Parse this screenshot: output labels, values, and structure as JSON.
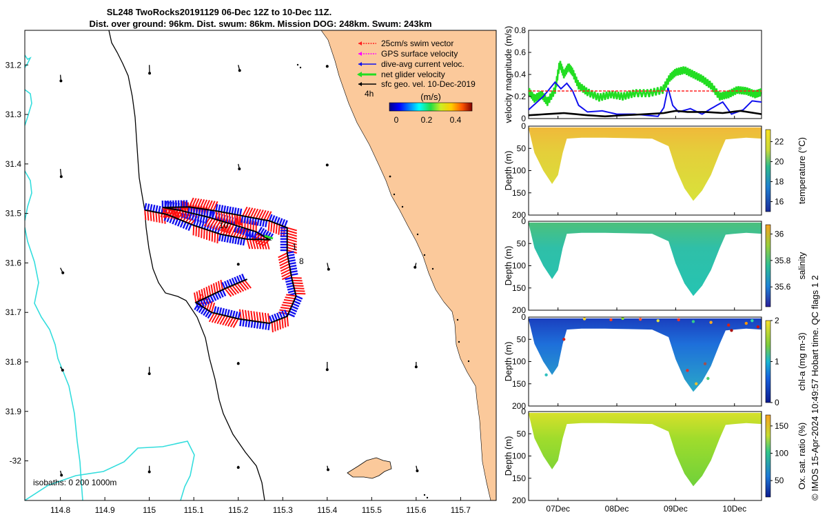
{
  "title": {
    "line1": "SL248 TwoRocks20191129 06-Dec 12Z to 10-Dec 11Z.",
    "line2": "Dist. over ground: 96km. Dist. swum: 86km. Mission DOG: 248km. Swum: 243km"
  },
  "colors": {
    "land": "#FBC99B",
    "isobath": "#33DDDD",
    "track_blue": "#1010EE",
    "track_red": "#FF0000",
    "net_green": "#22DD22",
    "swim_red": "#FF2020",
    "gps_magenta": "#FF00FF",
    "geo_black": "#000000"
  },
  "chart_data": [
    {
      "type": "map",
      "name": "glider_track_map",
      "xlim": [
        114.72,
        115.78
      ],
      "ylim": [
        -32.08,
        -31.13
      ],
      "x_ticks": [
        114.8,
        114.9,
        115,
        115.1,
        115.2,
        115.3,
        115.4,
        115.5,
        115.6,
        115.7
      ],
      "x_tick_labels": [
        "114.8",
        "114.9",
        "115",
        "115.1",
        "115.2",
        "115.3",
        "115.4",
        "115.5",
        "115.6",
        "115.7"
      ],
      "y_ticks": [
        -31.2,
        -31.3,
        -31.4,
        -31.5,
        -31.6,
        -31.7,
        -31.8,
        -31.9,
        -32.0
      ],
      "y_tick_labels": [
        "31.2",
        "31.3",
        "31.4",
        "31.5",
        "31.6",
        "31.7",
        "31.8",
        "31.9",
        "-32"
      ],
      "legend": {
        "position": "top-right",
        "items": [
          {
            "label": "25cm/s swim vector",
            "color": "#FF2020",
            "style": "dotted"
          },
          {
            "label": "GPS surface velocity",
            "color": "#FF00FF",
            "style": "dotted"
          },
          {
            "label": "dive-avg current veloc.",
            "color": "#1010EE",
            "style": "solid"
          },
          {
            "label": "net glider velocity",
            "color": "#22DD22",
            "style": "thick"
          },
          {
            "label": "sfc geo. vel. 10-Dec-2019",
            "color": "#000000",
            "style": "solid"
          }
        ],
        "time_marker_label": "4h",
        "colorbar_unit": "(m/s)",
        "colorbar_ticks": [
          "0",
          "0.2",
          "0.4"
        ],
        "colorbar_range": [
          0,
          0.5
        ]
      },
      "day_labels": [
        "10",
        "1",
        "8"
      ],
      "isobaths_label": "isobaths: 0   200  1000m",
      "track": [
        [
          114.99,
          -31.493
        ],
        [
          115.04,
          -31.502
        ],
        [
          115.1,
          -31.524
        ],
        [
          115.16,
          -31.542
        ],
        [
          115.22,
          -31.552
        ],
        [
          115.27,
          -31.553
        ],
        [
          115.24,
          -31.537
        ],
        [
          115.19,
          -31.523
        ],
        [
          115.13,
          -31.507
        ],
        [
          115.07,
          -31.494
        ],
        [
          115.03,
          -31.488
        ],
        [
          115.09,
          -31.487
        ],
        [
          115.15,
          -31.495
        ],
        [
          115.21,
          -31.505
        ],
        [
          115.27,
          -31.515
        ],
        [
          115.31,
          -31.529
        ],
        [
          115.31,
          -31.58
        ],
        [
          115.32,
          -31.63
        ],
        [
          115.33,
          -31.667
        ],
        [
          115.31,
          -31.708
        ],
        [
          115.27,
          -31.722
        ],
        [
          115.2,
          -31.713
        ],
        [
          115.14,
          -31.7
        ],
        [
          115.105,
          -31.68
        ],
        [
          115.17,
          -31.652
        ],
        [
          115.22,
          -31.633
        ]
      ],
      "geo_vectors": [
        {
          "lon": 114.8,
          "lat": -31.22,
          "u": 0.02,
          "v": -0.22
        },
        {
          "lon": 115.0,
          "lat": -31.2,
          "u": 0.01,
          "v": -0.3
        },
        {
          "lon": 115.2,
          "lat": -31.2,
          "u": 0.05,
          "v": -0.2
        },
        {
          "lon": 115.4,
          "lat": -31.2,
          "u": 0.0,
          "v": -0.05
        },
        {
          "lon": 114.8,
          "lat": -31.41,
          "u": 0.03,
          "v": -0.28
        },
        {
          "lon": 115.2,
          "lat": -31.4,
          "u": 0.04,
          "v": -0.18
        },
        {
          "lon": 115.4,
          "lat": -31.4,
          "u": 0.0,
          "v": -0.04
        },
        {
          "lon": 114.8,
          "lat": -31.61,
          "u": 0.09,
          "v": -0.18
        },
        {
          "lon": 115.2,
          "lat": -31.6,
          "u": 0.0,
          "v": -0.05
        },
        {
          "lon": 115.4,
          "lat": -31.6,
          "u": 0.05,
          "v": -0.23
        },
        {
          "lon": 115.6,
          "lat": -31.6,
          "u": -0.04,
          "v": -0.16
        },
        {
          "lon": 114.8,
          "lat": -31.81,
          "u": 0.08,
          "v": -0.12
        },
        {
          "lon": 115.0,
          "lat": -31.81,
          "u": 0.0,
          "v": -0.25
        },
        {
          "lon": 115.2,
          "lat": -31.8,
          "u": 0.0,
          "v": -0.06
        },
        {
          "lon": 115.4,
          "lat": -31.8,
          "u": 0.0,
          "v": -0.28
        },
        {
          "lon": 115.6,
          "lat": -31.8,
          "u": 0.0,
          "v": -0.18
        },
        {
          "lon": 114.8,
          "lat": -32.02,
          "u": 0.04,
          "v": -0.16
        },
        {
          "lon": 115.0,
          "lat": -32.01,
          "u": 0.0,
          "v": -0.22
        },
        {
          "lon": 115.2,
          "lat": -32.01,
          "u": 0.0,
          "v": -0.06
        },
        {
          "lon": 115.4,
          "lat": -32.01,
          "u": 0.03,
          "v": -0.14
        },
        {
          "lon": 115.6,
          "lat": -32.01,
          "u": 0.04,
          "v": -0.18
        }
      ]
    },
    {
      "type": "line",
      "name": "velocity_magnitude",
      "ylabel": "velocity magnitude (m/s)",
      "ylim": [
        0,
        0.8
      ],
      "y_ticks": [
        0,
        0.2,
        0.4,
        0.6,
        0.8
      ],
      "y_tick_labels": [
        "0",
        "0.2",
        "0.4",
        "0.6",
        "0.8"
      ],
      "x_days": [
        6.5,
        10.46
      ],
      "series": [
        {
          "name": "net glider velocity",
          "color": "#22DD22",
          "x": [
            6.5,
            6.6,
            6.72,
            6.82,
            6.95,
            7.03,
            7.1,
            7.18,
            7.25,
            7.35,
            7.5,
            7.7,
            7.9,
            8.1,
            8.3,
            8.55,
            8.78,
            8.9,
            9.0,
            9.15,
            9.3,
            9.45,
            9.6,
            9.75,
            9.9,
            10.05,
            10.2,
            10.35,
            10.46
          ],
          "y": [
            0.25,
            0.18,
            0.22,
            0.15,
            0.26,
            0.5,
            0.4,
            0.47,
            0.42,
            0.3,
            0.24,
            0.19,
            0.22,
            0.2,
            0.23,
            0.23,
            0.26,
            0.37,
            0.42,
            0.44,
            0.4,
            0.36,
            0.3,
            0.2,
            0.22,
            0.26,
            0.25,
            0.22,
            0.24
          ]
        },
        {
          "name": "dive-avg current veloc.",
          "color": "#1010EE",
          "x": [
            6.5,
            6.75,
            6.95,
            7.05,
            7.15,
            7.25,
            7.35,
            7.5,
            7.75,
            8.0,
            8.3,
            8.5,
            8.7,
            8.8,
            8.87,
            8.95,
            9.05,
            9.25,
            9.45,
            9.6,
            9.8,
            9.95,
            10.15,
            10.3,
            10.46
          ],
          "y": [
            0.08,
            0.2,
            0.33,
            0.27,
            0.32,
            0.25,
            0.12,
            0.06,
            0.07,
            0.04,
            0.04,
            0.03,
            0.02,
            0.1,
            0.28,
            0.12,
            0.06,
            0.09,
            0.04,
            0.09,
            0.15,
            0.04,
            0.08,
            0.16,
            0.15
          ]
        },
        {
          "name": "25cm/s swim vector",
          "color": "#FF2020",
          "style": "dashed",
          "x": [
            6.5,
            10.46
          ],
          "y": [
            0.25,
            0.25
          ]
        },
        {
          "name": "sfc geo. vel.",
          "color": "#000000",
          "x": [
            6.5,
            6.8,
            7.1,
            7.5,
            7.8,
            8.1,
            8.5,
            8.8,
            9.0,
            9.2,
            9.5,
            9.8,
            10.1,
            10.46
          ],
          "y": [
            0.03,
            0.04,
            0.05,
            0.03,
            0.02,
            0.03,
            0.04,
            0.05,
            0.07,
            0.06,
            0.06,
            0.05,
            0.07,
            0.04
          ]
        }
      ]
    },
    {
      "type": "heatmap",
      "name": "temperature_section",
      "ylabel": "Depth (m)",
      "colorbar_label": "temperature (°C)",
      "colorbar_ticks": [
        "16",
        "18",
        "20",
        "22"
      ],
      "colorbar_range": [
        15,
        23.2
      ],
      "ylim": [
        200,
        0
      ],
      "y_tick_labels": [
        "0",
        "50",
        "100",
        "150",
        "200"
      ],
      "base_color": "#E8D93C"
    },
    {
      "type": "heatmap",
      "name": "salinity_section",
      "ylabel": "Depth (m)",
      "colorbar_label": "salinity",
      "colorbar_ticks": [
        "35.6",
        "35.8",
        "36"
      ],
      "colorbar_range": [
        35.45,
        36.07
      ],
      "ylim": [
        200,
        0
      ],
      "y_tick_labels": [
        "0",
        "50",
        "100",
        "150",
        "200"
      ],
      "base_color": "#35C2A4"
    },
    {
      "type": "heatmap",
      "name": "chla_section",
      "ylabel": "Depth (m)",
      "colorbar_label": "chl-a (mg m-3)",
      "colorbar_ticks": [
        "0",
        "1",
        "2"
      ],
      "colorbar_range": [
        0,
        2
      ],
      "ylim": [
        200,
        0
      ],
      "y_tick_labels": [
        "0",
        "50",
        "100",
        "150",
        "200"
      ],
      "base_color": "#1A54D8"
    },
    {
      "type": "heatmap",
      "name": "oxygen_section",
      "ylabel": "Depth (m)",
      "colorbar_label": "Ox. sat. ratio (%)",
      "colorbar_ticks": [
        "50",
        "100",
        "150"
      ],
      "colorbar_range": [
        20,
        170
      ],
      "ylim": [
        200,
        0
      ],
      "y_tick_labels": [
        "0",
        "50",
        "100",
        "150",
        "200"
      ],
      "base_color": "#8CE62C"
    }
  ],
  "x_axis_days": [
    "07Dec",
    "08Dec",
    "09Dec",
    "10Dec"
  ],
  "x_axis_day_values": [
    7,
    8,
    9,
    10
  ],
  "footer": "© IMOS 15-Apr-2024 10:49:57 Hobart time. QC flags 1  2"
}
